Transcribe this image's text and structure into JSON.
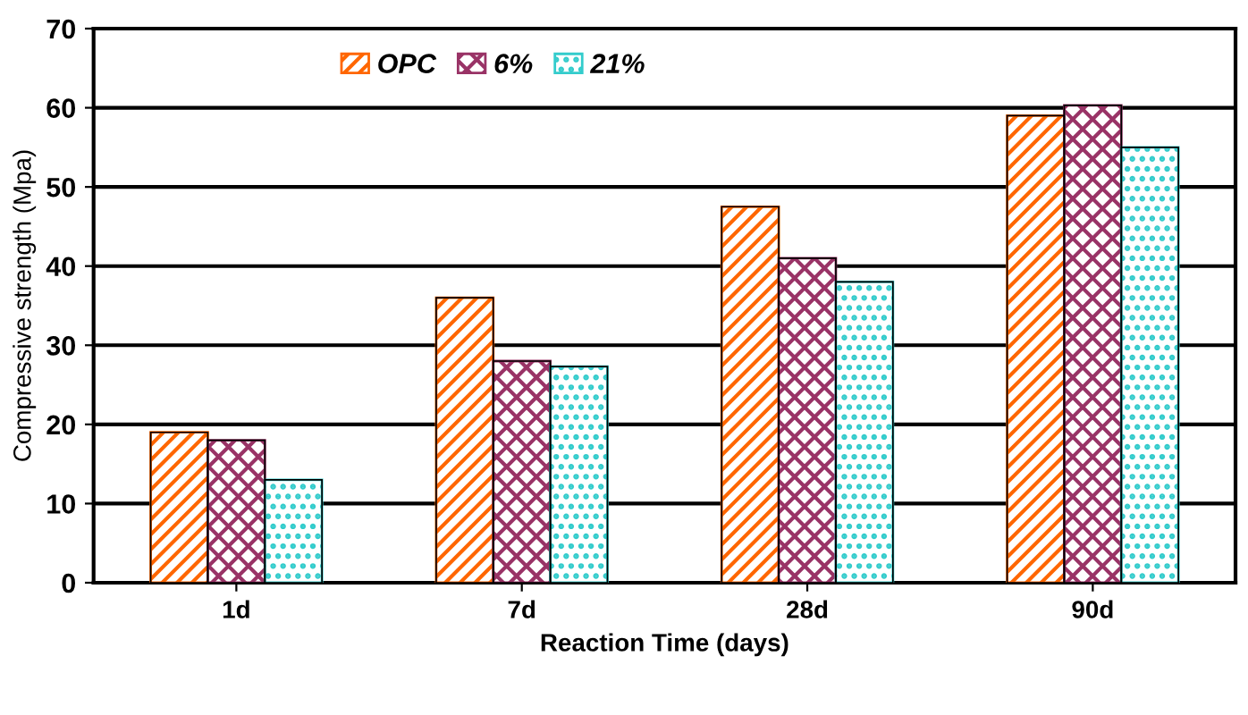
{
  "chart_data": {
    "type": "bar",
    "xlabel": "Reaction Time (days)",
    "ylabel": "Compressive strength (Mpa)",
    "categories": [
      "1d",
      "7d",
      "28d",
      "90d"
    ],
    "series": [
      {
        "name": "OPC",
        "color": "#ff6600",
        "values": [
          19,
          36,
          47.5,
          59
        ]
      },
      {
        "name": "6%",
        "color": "#993366",
        "values": [
          18,
          28,
          41,
          60.3
        ]
      },
      {
        "name": "21%",
        "color": "#33cccc",
        "values": [
          13,
          27.3,
          38,
          55
        ]
      }
    ],
    "ylim": [
      0,
      70
    ],
    "yticks": [
      0,
      10,
      20,
      30,
      40,
      50,
      60,
      70
    ],
    "grid": "y",
    "legend": "top"
  }
}
